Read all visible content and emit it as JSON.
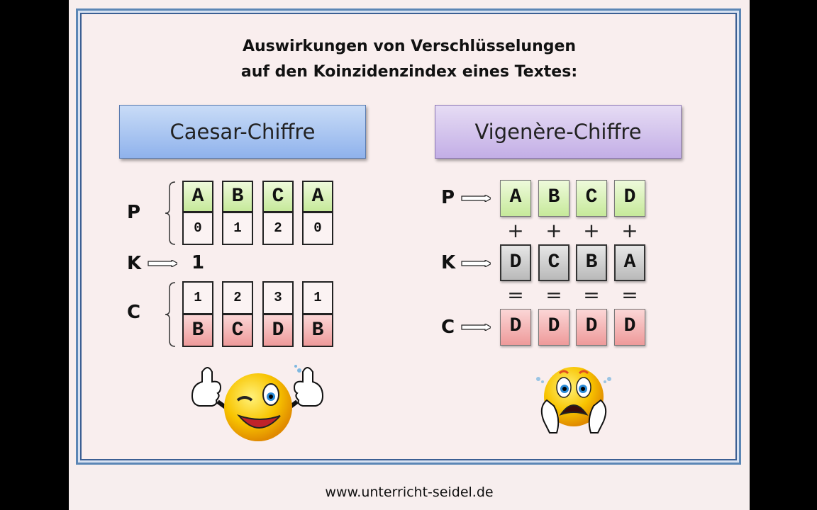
{
  "title": {
    "line1": "Auswirkungen von Verschlüsselungen",
    "line2": "auf den Koinzidenzindex eines Textes:"
  },
  "caesar": {
    "header": "Caesar-Chiffre",
    "label_p": "P",
    "label_k": "K",
    "label_c": "C",
    "plain_letters": [
      "A",
      "B",
      "C",
      "A"
    ],
    "plain_numbers": [
      "0",
      "1",
      "2",
      "0"
    ],
    "key": "1",
    "cipher_numbers": [
      "1",
      "2",
      "3",
      "1"
    ],
    "cipher_letters": [
      "B",
      "C",
      "D",
      "B"
    ],
    "emoji": "winking-thumbs-up-smiley"
  },
  "vigenere": {
    "header": "Vigenère-Chiffre",
    "label_p": "P",
    "label_k": "K",
    "label_c": "C",
    "plain_letters": [
      "A",
      "B",
      "C",
      "D"
    ],
    "plus": "+",
    "key_letters": [
      "D",
      "C",
      "B",
      "A"
    ],
    "equals": "=",
    "cipher_letters": [
      "D",
      "D",
      "D",
      "D"
    ],
    "emoji": "shocked-smiley"
  },
  "footer": "www.unterricht-seidel.de",
  "colors": {
    "plain": "#c6e99a",
    "cipher": "#ee9a9a",
    "key": "#b9b9b9",
    "caesar_header": "#8fb2ec",
    "vigenere_header": "#c3aee6",
    "frame": "#5b86b5"
  }
}
